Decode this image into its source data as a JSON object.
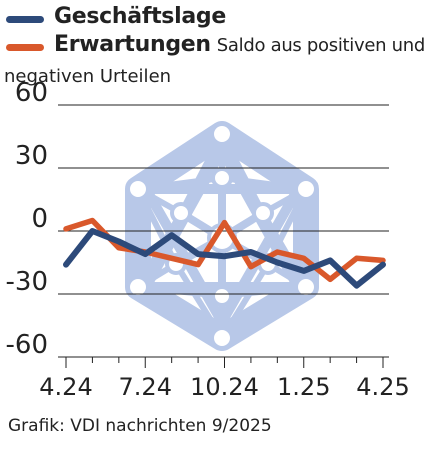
{
  "chart_data": {
    "type": "line",
    "title": "",
    "xlabel": "",
    "ylabel": "",
    "ylim": [
      -60,
      60
    ],
    "yticks": [
      "60",
      "30",
      "0",
      "-30",
      "-60"
    ],
    "ytick_values": [
      60,
      30,
      0,
      -30,
      -60
    ],
    "xticks": [
      "4.24",
      "7.24",
      "10.24",
      "1.25",
      "4.25"
    ],
    "grid": true,
    "legend_placement": "top-left",
    "x": [
      "4.24",
      "5.24",
      "6.24",
      "7.24",
      "8.24",
      "9.24",
      "10.24",
      "11.24",
      "12.24",
      "1.25",
      "2.25",
      "3.25",
      "4.25"
    ],
    "series": [
      {
        "name": "Geschäftslage",
        "color": "#2d4a7a",
        "values": [
          -16,
          0,
          -5,
          -11,
          -2,
          -11,
          -12,
          -10,
          -15,
          -19,
          -14,
          -26,
          -16
        ]
      },
      {
        "name": "Erwartungen",
        "color": "#d9582b",
        "values": [
          1,
          5,
          -8,
          -10,
          -13,
          -16,
          4,
          -17,
          -10,
          -13,
          -23,
          -13,
          -14
        ]
      }
    ],
    "legend_note_line1": "Saldo aus positiven und",
    "legend_note_line2": "negativen Urteilen"
  },
  "source": "Grafik: VDI nachrichten 9/2025",
  "colors": {
    "grid": "#222222",
    "watermark": "#b8c8e8"
  }
}
